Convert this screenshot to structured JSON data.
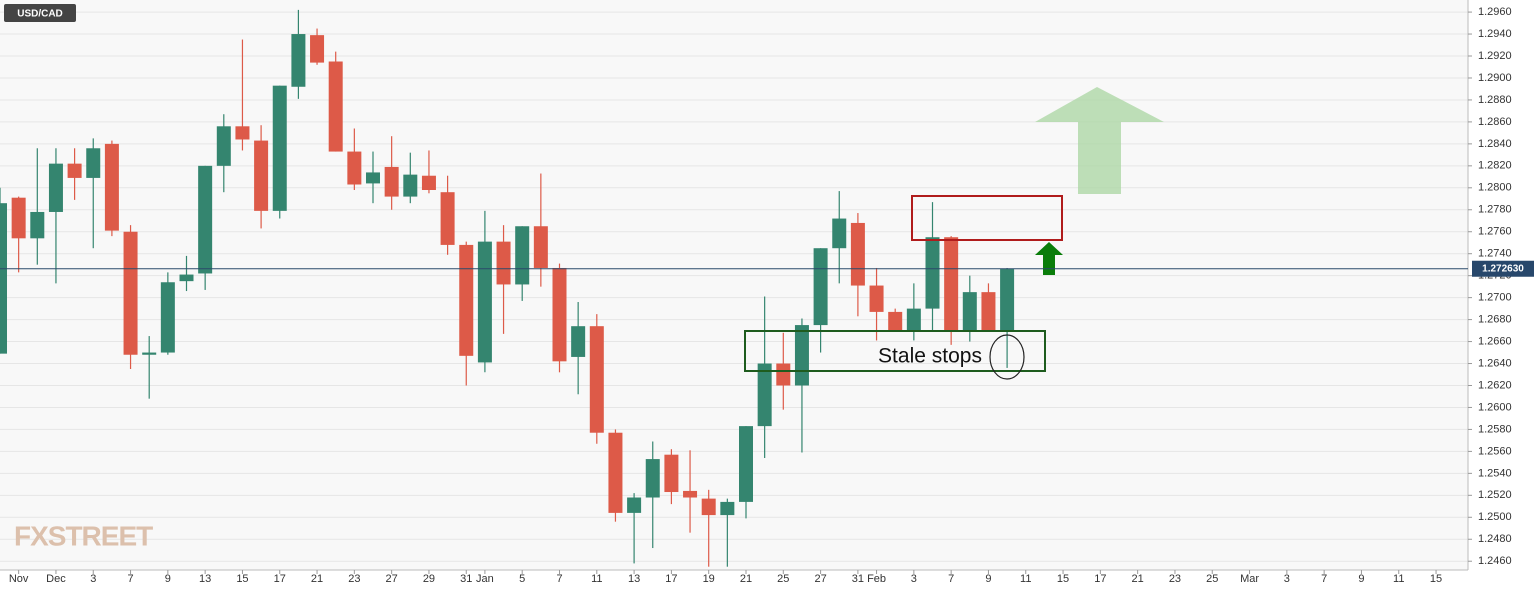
{
  "chart_data": {
    "type": "candlestick",
    "title": "USD/CAD",
    "annotation": "Stale stops",
    "watermark": "FXSTREET",
    "up_color": "#34856f",
    "down_color": "#dd5a48",
    "grid": true,
    "categories": [
      null,
      "Nov",
      null,
      "Dec",
      null,
      "3",
      null,
      "7",
      null,
      "9",
      null,
      "13",
      null,
      "15",
      null,
      "17",
      null,
      "21",
      null,
      "23",
      null,
      "27",
      null,
      "29",
      null,
      "31",
      "Jan",
      null,
      "5",
      null,
      "7",
      null,
      "11",
      null,
      "13",
      null,
      "17",
      null,
      "19",
      null,
      "21",
      null,
      "25",
      null,
      "27",
      null,
      "31",
      "Feb",
      null,
      "3",
      null,
      "7",
      null,
      "9",
      null,
      "11",
      null,
      "15",
      null,
      "17",
      null,
      "21",
      null,
      "23",
      null,
      "25",
      null,
      "Mar",
      null,
      "3",
      null,
      "7",
      null,
      "9",
      null,
      "11",
      null,
      "15",
      null
    ],
    "open": [
      1.2649,
      1.2791,
      1.2754,
      1.2778,
      1.2822,
      1.2809,
      1.284,
      1.276,
      1.2648,
      1.265,
      1.2715,
      1.2722,
      1.282,
      1.2856,
      1.2843,
      1.2779,
      1.2892,
      1.2939,
      1.2915,
      1.2833,
      1.2804,
      1.2819,
      1.2792,
      1.2811,
      1.2796,
      1.2748,
      1.2641,
      1.2751,
      1.2712,
      1.2765,
      1.2727,
      1.2646,
      1.2674,
      1.2577,
      1.2504,
      1.2518,
      1.2557,
      1.2524,
      1.2517,
      1.2502,
      1.2514,
      1.2583,
      1.264,
      1.262,
      1.2675,
      1.2745,
      1.2768,
      1.2711,
      1.2687,
      1.267,
      1.269,
      1.2755,
      1.267,
      1.2705,
      1.267,
      null,
      null,
      null,
      null,
      null,
      null,
      null,
      null,
      null,
      null,
      null,
      null,
      null,
      null,
      null,
      null,
      null,
      null,
      null,
      null,
      null,
      null,
      null,
      null
    ],
    "high": [
      1.28,
      1.2792,
      1.2836,
      1.2836,
      1.2836,
      1.2845,
      1.2843,
      1.2766,
      1.2665,
      1.2723,
      1.2738,
      1.282,
      1.2867,
      1.2935,
      1.2857,
      1.2893,
      1.2962,
      1.2945,
      1.2924,
      1.2854,
      1.2833,
      1.2847,
      1.2832,
      1.2834,
      1.2811,
      1.2751,
      1.2779,
      1.2766,
      1.2765,
      1.2813,
      1.2731,
      1.2696,
      1.2685,
      1.258,
      1.2522,
      1.2569,
      1.2562,
      1.2561,
      1.2525,
      1.2517,
      1.2583,
      1.2701,
      1.2668,
      1.2681,
      1.2745,
      1.2797,
      1.2777,
      1.2727,
      1.269,
      1.2713,
      1.2787,
      1.2756,
      1.272,
      1.2713,
      1.2727,
      null,
      null,
      null,
      null,
      null,
      null,
      null,
      null,
      null,
      null,
      null,
      null,
      null,
      null,
      null,
      null,
      null,
      null,
      null,
      null,
      null,
      null,
      null,
      null
    ],
    "low": [
      1.2649,
      1.2723,
      1.273,
      1.2713,
      1.2789,
      1.2745,
      1.2756,
      1.2635,
      1.2608,
      1.2648,
      1.2706,
      1.2707,
      1.2796,
      1.2834,
      1.2763,
      1.2772,
      1.2881,
      1.2912,
      1.2833,
      1.2798,
      1.2786,
      1.278,
      1.2786,
      1.2795,
      1.2739,
      1.262,
      1.2632,
      1.2667,
      1.2697,
      1.271,
      1.2632,
      1.2612,
      1.2567,
      1.2496,
      1.2458,
      1.2472,
      1.2512,
      1.2486,
      1.2455,
      1.2455,
      1.2499,
      1.2554,
      1.2598,
      1.2559,
      1.265,
      1.2713,
      1.2683,
      1.2661,
      1.2669,
      1.2661,
      1.2669,
      1.2657,
      1.266,
      1.2669,
      1.2636,
      null,
      null,
      null,
      null,
      null,
      null,
      null,
      null,
      null,
      null,
      null,
      null,
      null,
      null,
      null,
      null,
      null,
      null,
      null,
      null,
      null,
      null,
      null,
      null
    ],
    "close": [
      1.2786,
      1.2754,
      1.2778,
      1.2822,
      1.2809,
      1.2836,
      1.2761,
      1.2648,
      1.265,
      1.2714,
      1.2721,
      1.282,
      1.2856,
      1.2844,
      1.2779,
      1.2893,
      1.294,
      1.2914,
      1.2833,
      1.2803,
      1.2814,
      1.2792,
      1.2812,
      1.2798,
      1.2748,
      1.2647,
      1.2751,
      1.2712,
      1.2765,
      1.2727,
      1.2642,
      1.2674,
      1.2577,
      1.2504,
      1.2518,
      1.2553,
      1.2523,
      1.2518,
      1.2502,
      1.2514,
      1.2583,
      1.264,
      1.262,
      1.2675,
      1.2745,
      1.2772,
      1.2711,
      1.2687,
      1.267,
      1.269,
      1.2755,
      1.267,
      1.2705,
      1.267,
      1.2726,
      null,
      null,
      null,
      null,
      null,
      null,
      null,
      null,
      null,
      null,
      null,
      null,
      null,
      null,
      null,
      null,
      null,
      null,
      null,
      null,
      null,
      null,
      null,
      null
    ],
    "last_price": {
      "value": 1.27263,
      "label": "1.272630"
    },
    "ylim": [
      1.2452,
      1.2971
    ],
    "yticks": [
      {
        "value": 1.246,
        "label": "1.2460"
      },
      {
        "value": 1.248,
        "label": "1.2480"
      },
      {
        "value": 1.25,
        "label": "1.2500"
      },
      {
        "value": 1.252,
        "label": "1.2520"
      },
      {
        "value": 1.254,
        "label": "1.2540"
      },
      {
        "value": 1.256,
        "label": "1.2560"
      },
      {
        "value": 1.258,
        "label": "1.2580"
      },
      {
        "value": 1.26,
        "label": "1.2600"
      },
      {
        "value": 1.262,
        "label": "1.2620"
      },
      {
        "value": 1.264,
        "label": "1.2640"
      },
      {
        "value": 1.266,
        "label": "1.2660"
      },
      {
        "value": 1.268,
        "label": "1.2680"
      },
      {
        "value": 1.27,
        "label": "1.2700"
      },
      {
        "value": 1.272,
        "label": "1.2720"
      },
      {
        "value": 1.274,
        "label": "1.2740"
      },
      {
        "value": 1.276,
        "label": "1.2760"
      },
      {
        "value": 1.278,
        "label": "1.2780"
      },
      {
        "value": 1.28,
        "label": "1.2800"
      },
      {
        "value": 1.282,
        "label": "1.2820"
      },
      {
        "value": 1.284,
        "label": "1.2840"
      },
      {
        "value": 1.286,
        "label": "1.2860"
      },
      {
        "value": 1.288,
        "label": "1.2880"
      },
      {
        "value": 1.29,
        "label": "1.2900"
      },
      {
        "value": 1.292,
        "label": "1.2920"
      },
      {
        "value": 1.294,
        "label": "1.2940"
      },
      {
        "value": 1.296,
        "label": "1.2960"
      }
    ]
  }
}
